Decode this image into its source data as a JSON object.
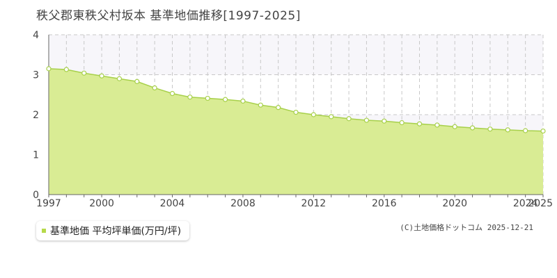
{
  "title": "秩父郡東秩父村坂本 基準地価推移[1997-2025]",
  "colors": {
    "area": "#d9ec94",
    "line": "#a7d04a",
    "marker_fill": "#ffffff",
    "grid": "#c8c8c8",
    "axis": "#666666",
    "band": "#f7f6fa"
  },
  "legend": {
    "label": "基準地価 平均坪単価(万円/坪)",
    "swatch_color": "#b6d94a"
  },
  "credit": "(C)土地価格ドットコム 2025-12-21",
  "chart_data": {
    "type": "area",
    "title": "秩父郡東秩父村坂本 基準地価推移[1997-2025]",
    "xlabel": "",
    "ylabel": "",
    "x": [
      1997,
      1998,
      1999,
      2000,
      2001,
      2002,
      2003,
      2004,
      2005,
      2006,
      2007,
      2008,
      2009,
      2010,
      2011,
      2012,
      2013,
      2014,
      2015,
      2016,
      2017,
      2018,
      2019,
      2020,
      2021,
      2022,
      2023,
      2024,
      2025
    ],
    "series": [
      {
        "name": "基準地価 平均坪単価(万円/坪)",
        "values": [
          3.15,
          3.13,
          3.04,
          2.97,
          2.9,
          2.83,
          2.67,
          2.53,
          2.44,
          2.41,
          2.38,
          2.34,
          2.24,
          2.18,
          2.06,
          2.0,
          1.95,
          1.9,
          1.86,
          1.84,
          1.8,
          1.77,
          1.74,
          1.7,
          1.67,
          1.64,
          1.62,
          1.6,
          1.59
        ]
      }
    ],
    "xlim": [
      1997,
      2025
    ],
    "ylim": [
      0,
      4
    ],
    "x_ticks": [
      "1997",
      "2000",
      "2004",
      "2008",
      "2012",
      "2016",
      "2020",
      "2024",
      "2025"
    ],
    "y_ticks": [
      "0",
      "1",
      "2",
      "3",
      "4"
    ],
    "grid": true,
    "legend_position": "bottom-left"
  }
}
